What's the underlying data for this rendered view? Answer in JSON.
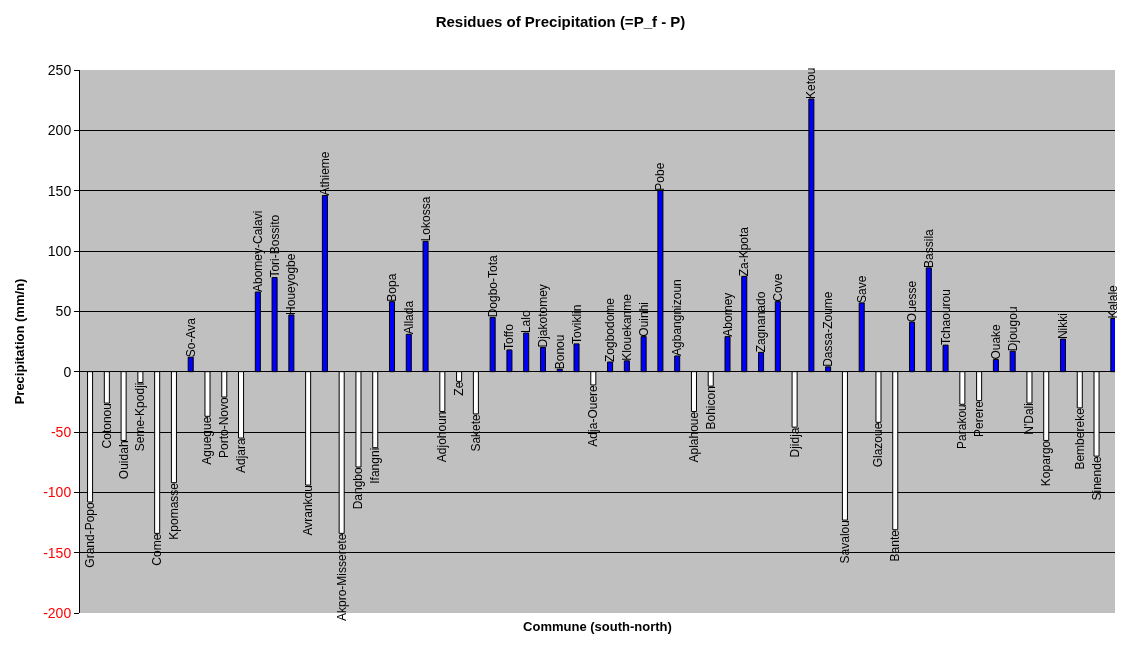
{
  "chart_data": {
    "type": "bar",
    "title": "Residues of Precipitation (=P_f - P)",
    "xlabel": "Commune (south-north)",
    "ylabel": "Precipitation (mm/n)",
    "categories": [
      "Grand-Popo",
      "Cotonou",
      "Ouidah",
      "Seme-Kpodji",
      "Come",
      "Kpomasse",
      "So-Ava",
      "Aguegue",
      "Porto-Novo",
      "Adjara",
      "Abomey-Calavi",
      "Tori-Bossito",
      "Houeyogbe",
      "Avrankou",
      "Athieme",
      "Akpro-Misserete",
      "Dangbo",
      "Ifangni",
      "Bopa",
      "Allada",
      "Lokossa",
      "Adjohoun",
      "Ze",
      "Sakete",
      "Dogbo-Tota",
      "Toffo",
      "Lalo",
      "Djakotomey",
      "Bonou",
      "Toviklin",
      "Adja-Ouere",
      "Zogbodome",
      "Klouekanme",
      "Ouinhi",
      "Pobe",
      "Agbangnizoun",
      "Aplahoue",
      "Bohicon",
      "Abomey",
      "Za-Kpota",
      "Zagnanado",
      "Cove",
      "Djidja",
      "Ketou",
      "Dassa-Zoume",
      "Savalou",
      "Save",
      "Glazoue",
      "Bante",
      "Ouesse",
      "Bassila",
      "Tchaourou",
      "Parakou",
      "Perere",
      "Ouake",
      "Djougou",
      "N'Dali",
      "Kopargo",
      "Nikki",
      "Bembereke",
      "Sinende",
      "Kalale"
    ],
    "values": [
      -108,
      -26,
      -57,
      -9,
      -134,
      -92,
      12,
      -37,
      -21,
      -55,
      66,
      78,
      47,
      -94,
      146,
      -134,
      -79,
      -63,
      58,
      31,
      108,
      -33,
      -8,
      -35,
      45,
      18,
      32,
      20,
      2,
      23,
      -11,
      8,
      9,
      29,
      150,
      13,
      -33,
      -12,
      29,
      79,
      16,
      58,
      -46,
      226,
      4,
      -123,
      57,
      -42,
      -131,
      41,
      86,
      22,
      -27,
      -24,
      10,
      17,
      -26,
      -57,
      27,
      -30,
      -70,
      44
    ],
    "colors": [
      "#ffffff",
      "#ffffff",
      "#ffffff",
      "#ffffff",
      "#ffffff",
      "#ffffff",
      "#0000ff",
      "#ffffff",
      "#ffffff",
      "#ffffff",
      "#0000ff",
      "#0000ff",
      "#0000ff",
      "#ffffff",
      "#0000ff",
      "#ffffff",
      "#ffffff",
      "#ffffff",
      "#0000ff",
      "#0000ff",
      "#0000ff",
      "#ffffff",
      "#ffffff",
      "#ffffff",
      "#0000ff",
      "#0000ff",
      "#0000ff",
      "#0000ff",
      "#0000ff",
      "#0000ff",
      "#ffffff",
      "#0000ff",
      "#0000ff",
      "#0000ff",
      "#0000ff",
      "#0000ff",
      "#ffffff",
      "#ffffff",
      "#0000ff",
      "#0000ff",
      "#0000ff",
      "#0000ff",
      "#ffffff",
      "#0000ff",
      "#0000ff",
      "#ffffff",
      "#0000ff",
      "#ffffff",
      "#ffffff",
      "#0000ff",
      "#0000ff",
      "#0000ff",
      "#ffffff",
      "#ffffff",
      "#0000ff",
      "#0000ff",
      "#ffffff",
      "#ffffff",
      "#0000ff",
      "#ffffff",
      "#ffffff",
      "#0000ff"
    ],
    "ylim": [
      -200,
      250
    ],
    "yticks": [
      -200,
      -150,
      -100,
      -50,
      0,
      50,
      100,
      150,
      200,
      250
    ],
    "grid": "y",
    "tick_labels": "y"
  }
}
